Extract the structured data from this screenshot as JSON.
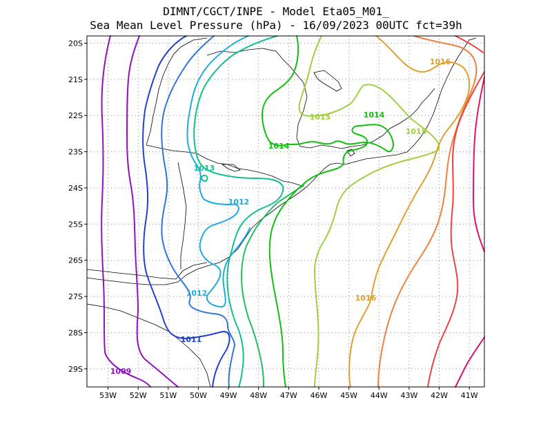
{
  "title": {
    "line1": "DIMNT/CGCT/INPE -  Model Eta05_M01_",
    "line2": "Sea Mean Level Pressure (hPa) - 16/09/2023 00UTC fct=39h"
  },
  "map": {
    "lon_range": [
      -53.7,
      -40.5
    ],
    "lat_range": [
      -29.5,
      -19.8
    ],
    "lon_ticks": [
      {
        "value": -53,
        "label": "53W"
      },
      {
        "value": -52,
        "label": "52W"
      },
      {
        "value": -51,
        "label": "51W"
      },
      {
        "value": -50,
        "label": "50W"
      },
      {
        "value": -49,
        "label": "49W"
      },
      {
        "value": -48,
        "label": "48W"
      },
      {
        "value": -47,
        "label": "47W"
      },
      {
        "value": -46,
        "label": "46W"
      },
      {
        "value": -45,
        "label": "45W"
      },
      {
        "value": -44,
        "label": "44W"
      },
      {
        "value": -43,
        "label": "43W"
      },
      {
        "value": -42,
        "label": "42W"
      },
      {
        "value": -41,
        "label": "41W"
      }
    ],
    "lat_ticks": [
      {
        "value": -20,
        "label": "20S"
      },
      {
        "value": -21,
        "label": "21S"
      },
      {
        "value": -22,
        "label": "22S"
      },
      {
        "value": -23,
        "label": "23S"
      },
      {
        "value": -24,
        "label": "24S"
      },
      {
        "value": -25,
        "label": "25S"
      },
      {
        "value": -26,
        "label": "26S"
      },
      {
        "value": -27,
        "label": "27S"
      },
      {
        "value": -28,
        "label": "28S"
      },
      {
        "value": -29,
        "label": "29S"
      }
    ]
  },
  "contour_labels": [
    {
      "text": "1016",
      "color": "#e0a030"
    },
    {
      "text": "1015",
      "color": "#a0d040"
    },
    {
      "text": "1014",
      "color": "#10c010"
    },
    {
      "text": "1015",
      "color": "#a0d040"
    },
    {
      "text": "1014",
      "color": "#10c010"
    },
    {
      "text": "1013",
      "color": "#10c090"
    },
    {
      "text": "1012",
      "color": "#1eaae0"
    },
    {
      "text": "1012",
      "color": "#1eaae0"
    },
    {
      "text": "1016",
      "color": "#e0a030"
    },
    {
      "text": "1011",
      "color": "#2040d0"
    },
    {
      "text": "1009",
      "color": "#9010c0"
    }
  ],
  "colors": {
    "c1009": "#9010c0",
    "c1010": "#7020d0",
    "c1011": "#2040d0",
    "c1011b": "#2f74e0",
    "c1012": "#1eaae0",
    "c1013": "#10c090",
    "c1013b": "#20c060",
    "c1014": "#10c010",
    "c1015": "#a0d040",
    "c1016": "#e0a030",
    "c1017": "#f08040",
    "c1018": "#f04040",
    "c1019": "#e01070"
  }
}
